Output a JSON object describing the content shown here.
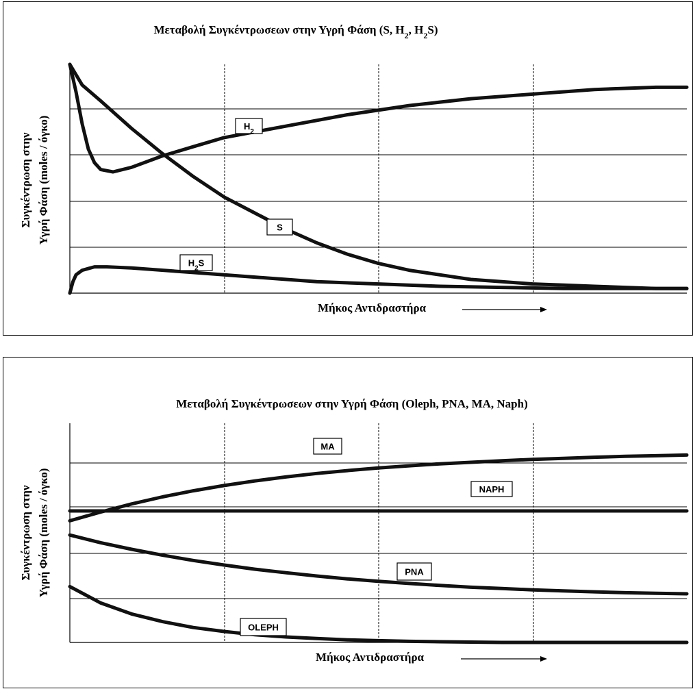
{
  "chart_data": [
    {
      "type": "line",
      "title_parts": [
        "Μεταβολή Συγκέντρωσεων στην Υγρή Φάση (S, H",
        "2",
        ", H",
        "2",
        "S)"
      ],
      "ylabel_line1": "Συγκέντρωση στην",
      "ylabel_line2": "Υγρή Φάση (moles / όγκο)",
      "xlabel": "Μήκος Αντιδραστήρα",
      "xlim": [
        0,
        1
      ],
      "ylim": [
        0,
        1
      ],
      "grid": {
        "horizontal": true,
        "vertical": "dashed"
      },
      "series": [
        {
          "name": "H2",
          "label_parts": [
            "H",
            "2",
            ""
          ],
          "x": [
            0,
            0.01,
            0.02,
            0.03,
            0.04,
            0.05,
            0.07,
            0.1,
            0.15,
            0.2,
            0.25,
            0.35,
            0.45,
            0.55,
            0.65,
            0.75,
            0.85,
            0.95,
            1.0
          ],
          "y": [
            1.0,
            0.88,
            0.74,
            0.63,
            0.57,
            0.54,
            0.53,
            0.55,
            0.6,
            0.64,
            0.68,
            0.73,
            0.78,
            0.82,
            0.85,
            0.87,
            0.89,
            0.9,
            0.9
          ]
        },
        {
          "name": "S",
          "label_parts": [
            "S"
          ],
          "x": [
            0,
            0.02,
            0.05,
            0.1,
            0.15,
            0.2,
            0.25,
            0.3,
            0.35,
            0.4,
            0.45,
            0.5,
            0.55,
            0.6,
            0.65,
            0.7,
            0.75,
            0.8,
            0.85,
            0.9,
            0.95,
            1.0
          ],
          "y": [
            1.0,
            0.91,
            0.84,
            0.72,
            0.61,
            0.51,
            0.42,
            0.35,
            0.28,
            0.22,
            0.17,
            0.13,
            0.1,
            0.08,
            0.06,
            0.05,
            0.04,
            0.035,
            0.03,
            0.025,
            0.02,
            0.02
          ]
        },
        {
          "name": "H2S",
          "label_parts": [
            "H",
            "2",
            "S"
          ],
          "x": [
            0,
            0.005,
            0.01,
            0.02,
            0.04,
            0.06,
            0.1,
            0.2,
            0.3,
            0.4,
            0.5,
            0.6,
            0.7,
            0.8,
            0.9,
            1.0
          ],
          "y": [
            0.0,
            0.05,
            0.08,
            0.1,
            0.115,
            0.115,
            0.11,
            0.09,
            0.07,
            0.05,
            0.04,
            0.03,
            0.025,
            0.02,
            0.02,
            0.02
          ]
        }
      ]
    },
    {
      "type": "line",
      "title_parts": [
        "Μεταβολή Συγκέντρωσεων στην Υγρή Φάση (Oleph, PNA, MA, Naph)"
      ],
      "ylabel_line1": "Συγκέντρωση στην",
      "ylabel_line2": "Υγρή Φάση (moles / όγκο)",
      "xlabel": "Μήκος Αντιδραστήρα",
      "xlim": [
        0,
        1
      ],
      "ylim": [
        0,
        1
      ],
      "grid": {
        "horizontal": true,
        "vertical": "dashed"
      },
      "series": [
        {
          "name": "MA",
          "label_parts": [
            "MA"
          ],
          "x": [
            0,
            0.05,
            0.1,
            0.15,
            0.2,
            0.25,
            0.3,
            0.35,
            0.4,
            0.45,
            0.5,
            0.55,
            0.6,
            0.65,
            0.7,
            0.75,
            0.8,
            0.85,
            0.9,
            0.95,
            1.0
          ],
          "y": [
            0.555,
            0.595,
            0.632,
            0.664,
            0.692,
            0.716,
            0.737,
            0.755,
            0.771,
            0.784,
            0.796,
            0.806,
            0.815,
            0.822,
            0.829,
            0.835,
            0.84,
            0.845,
            0.849,
            0.852,
            0.855
          ]
        },
        {
          "name": "NAPH",
          "label_parts": [
            "NAPH"
          ],
          "x": [
            0,
            1.0
          ],
          "y": [
            0.6,
            0.6
          ]
        },
        {
          "name": "PNA",
          "label_parts": [
            "PNA"
          ],
          "x": [
            0,
            0.05,
            0.1,
            0.15,
            0.2,
            0.25,
            0.3,
            0.35,
            0.4,
            0.45,
            0.5,
            0.55,
            0.6,
            0.65,
            0.7,
            0.75,
            0.8,
            0.85,
            0.9,
            0.95,
            1.0
          ],
          "y": [
            0.49,
            0.455,
            0.425,
            0.398,
            0.374,
            0.353,
            0.334,
            0.318,
            0.303,
            0.29,
            0.279,
            0.269,
            0.26,
            0.252,
            0.246,
            0.24,
            0.235,
            0.231,
            0.227,
            0.224,
            0.222
          ]
        },
        {
          "name": "OLEPH",
          "label_parts": [
            "OLEPH"
          ],
          "x": [
            0,
            0.05,
            0.1,
            0.15,
            0.2,
            0.25,
            0.3,
            0.35,
            0.4,
            0.45,
            0.5,
            0.55,
            0.6,
            0.7,
            0.8,
            0.9,
            1.0
          ],
          "y": [
            0.255,
            0.18,
            0.13,
            0.095,
            0.068,
            0.05,
            0.035,
            0.025,
            0.018,
            0.012,
            0.008,
            0.005,
            0.003,
            0.0,
            0.0,
            0.0,
            0.0
          ]
        }
      ]
    }
  ]
}
